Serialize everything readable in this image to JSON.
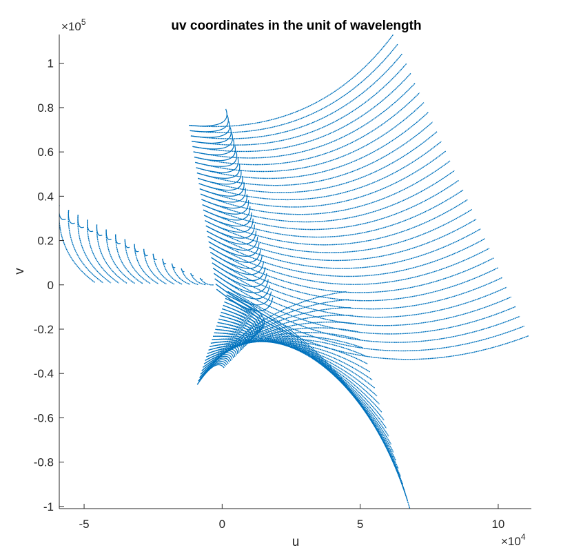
{
  "chart_data": {
    "type": "scatter",
    "title": "uv coordinates in the unit of wavelength",
    "xlabel": "u",
    "ylabel": "v",
    "x_exponent_base": "×10",
    "x_exponent_power": "4",
    "y_exponent_base": "×10",
    "y_exponent_power": "5",
    "xlim": [
      -59000,
      112000
    ],
    "ylim": [
      -101000,
      113000
    ],
    "xticks": [
      -50000,
      0,
      50000,
      100000
    ],
    "xtick_labels": [
      "-5",
      "0",
      "5",
      "10"
    ],
    "yticks": [
      -100000,
      -80000,
      -60000,
      -40000,
      -20000,
      0,
      20000,
      40000,
      60000,
      80000,
      100000
    ],
    "ytick_labels": [
      "-1",
      "-0.8",
      "-0.6",
      "-0.4",
      "-0.2",
      "0",
      "0.2",
      "0.4",
      "0.6",
      "0.8",
      "1"
    ],
    "grid": false,
    "series_color": "#0072BD",
    "arc_groups": [
      {
        "name_note": "upper-right fan",
        "u0": [
          -12000,
          -2000
        ],
        "v0": [
          72000,
          -2000
        ],
        "u1": [
          62000,
          111000
        ],
        "v1": [
          113000,
          -23000
        ],
        "count": 32
      },
      {
        "name_note": "left fan",
        "u0": [
          -59000,
          -8000
        ],
        "v0": [
          36000,
          3000
        ],
        "u1": [
          -46000,
          -3000
        ],
        "v1": [
          1000,
          0
        ],
        "count": 16
      },
      {
        "name_note": "lower fan",
        "u0": [
          -9000,
          2000
        ],
        "v0": [
          -45000,
          -3000
        ],
        "u1": [
          45000,
          68000
        ],
        "v1": [
          -3000,
          -101000
        ],
        "count": 28
      }
    ]
  }
}
